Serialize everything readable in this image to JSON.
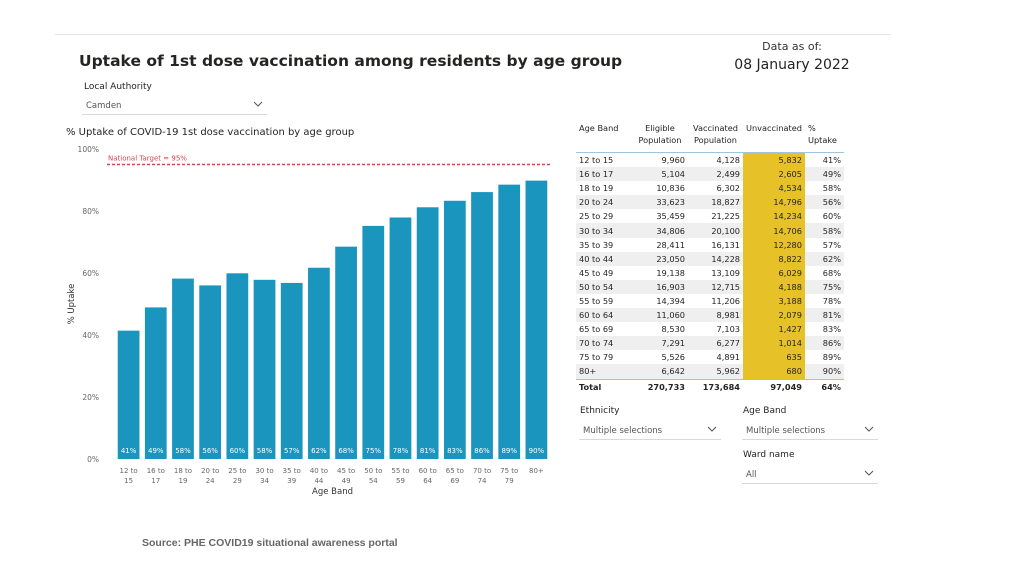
{
  "page": {
    "title": "Uptake of 1st dose vaccination among residents by age group",
    "data_as_of_label": "Data as of:",
    "data_as_of_date": "08 January 2022",
    "source": "Source: PHE COVID19 situational awareness portal"
  },
  "slicers": {
    "local_authority": {
      "label": "Local Authority",
      "value": "Camden"
    },
    "ethnicity": {
      "label": "Ethnicity",
      "value": "Multiple selections"
    },
    "age_band": {
      "label": "Age Band",
      "value": "Multiple selections"
    },
    "ward_name": {
      "label": "Ward name",
      "value": "All"
    }
  },
  "colors": {
    "bar": "#1a95be",
    "target": "#d64550",
    "highlight": "#e6c127"
  },
  "chart_data": {
    "type": "bar",
    "title": "% Uptake of COVID-19 1st dose vaccination by age group",
    "xlabel": "Age Band",
    "ylabel": "% Uptake",
    "ylim": [
      0,
      100
    ],
    "yticks": [
      "0%",
      "20%",
      "40%",
      "60%",
      "80%",
      "100%"
    ],
    "grid": false,
    "categories": [
      [
        "12 to",
        "15"
      ],
      [
        "16 to",
        "17"
      ],
      [
        "18 to",
        "19"
      ],
      [
        "20 to",
        "24"
      ],
      [
        "25 to",
        "29"
      ],
      [
        "30 to",
        "34"
      ],
      [
        "35 to",
        "39"
      ],
      [
        "40 to",
        "44"
      ],
      [
        "45 to",
        "49"
      ],
      [
        "50 to",
        "54"
      ],
      [
        "55 to",
        "59"
      ],
      [
        "60 to",
        "64"
      ],
      [
        "65 to",
        "69"
      ],
      [
        "70 to",
        "74"
      ],
      [
        "75 to",
        "79"
      ],
      [
        "80+",
        ""
      ]
    ],
    "values": [
      41.4,
      48.9,
      58.2,
      56.0,
      59.9,
      57.8,
      56.8,
      61.7,
      68.5,
      75.2,
      77.9,
      81.2,
      83.3,
      86.1,
      88.5,
      89.8
    ],
    "labels": [
      "41%",
      "49%",
      "58%",
      "56%",
      "60%",
      "58%",
      "57%",
      "62%",
      "68%",
      "75%",
      "78%",
      "81%",
      "83%",
      "86%",
      "89%",
      "90%"
    ],
    "target": {
      "value": 95,
      "label": "National Target = 95%"
    }
  },
  "table": {
    "headers": [
      "Age Band",
      "Eligible Population",
      "Vaccinated Population",
      "Unvaccinated",
      "% Uptake"
    ],
    "rows": [
      [
        "12 to 15",
        "9,960",
        "4,128",
        "5,832",
        "41%"
      ],
      [
        "16 to 17",
        "5,104",
        "2,499",
        "2,605",
        "49%"
      ],
      [
        "18 to 19",
        "10,836",
        "6,302",
        "4,534",
        "58%"
      ],
      [
        "20 to 24",
        "33,623",
        "18,827",
        "14,796",
        "56%"
      ],
      [
        "25 to 29",
        "35,459",
        "21,225",
        "14,234",
        "60%"
      ],
      [
        "30 to 34",
        "34,806",
        "20,100",
        "14,706",
        "58%"
      ],
      [
        "35 to 39",
        "28,411",
        "16,131",
        "12,280",
        "57%"
      ],
      [
        "40 to 44",
        "23,050",
        "14,228",
        "8,822",
        "62%"
      ],
      [
        "45 to 49",
        "19,138",
        "13,109",
        "6,029",
        "68%"
      ],
      [
        "50 to 54",
        "16,903",
        "12,715",
        "4,188",
        "75%"
      ],
      [
        "55 to 59",
        "14,394",
        "11,206",
        "3,188",
        "78%"
      ],
      [
        "60 to 64",
        "11,060",
        "8,981",
        "2,079",
        "81%"
      ],
      [
        "65 to 69",
        "8,530",
        "7,103",
        "1,427",
        "83%"
      ],
      [
        "70 to 74",
        "7,291",
        "6,277",
        "1,014",
        "86%"
      ],
      [
        "75 to 79",
        "5,526",
        "4,891",
        "635",
        "89%"
      ],
      [
        "80+",
        "6,642",
        "5,962",
        "680",
        "90%"
      ]
    ],
    "total": [
      "Total",
      "270,733",
      "173,684",
      "97,049",
      "64%"
    ]
  }
}
